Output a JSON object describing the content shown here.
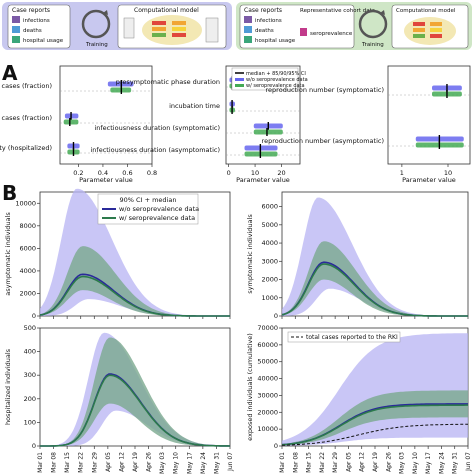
{
  "top_schematics": {
    "left": {
      "box1_title": "Case reports",
      "items": [
        "infections",
        "deaths",
        "hospital usage"
      ],
      "arrow_label": "Training",
      "model_title": "Computational model",
      "bg_color": "#c8c8ef"
    },
    "right": {
      "box1_title": "Case reports",
      "items": [
        "infections",
        "deaths",
        "hospital usage"
      ],
      "cohort_title": "Representative cohort data",
      "cohort_item": "seroprevalence",
      "arrow_label": "Training",
      "model_title": "Computational model",
      "bg_color": "#cfe6c6"
    }
  },
  "panel_labels": {
    "a": "A",
    "b": "B"
  },
  "colors": {
    "without_sero": "#6666ee",
    "with_sero": "#44aa55",
    "median_mark": "#000000",
    "band_purple": "#b7b3f3",
    "band_green": "#7aa98e",
    "line_blue": "#2a2a9a",
    "line_green": "#2c7a4c"
  },
  "panel_a": {
    "legend": [
      "median + 85/90/95% CI",
      "w/o seroprevalence data",
      "w/ seroprevalence data"
    ],
    "xlabel": "Parameter value",
    "sub1": {
      "ticks": [
        "0.2",
        "0.4",
        "0.6",
        "0.8"
      ],
      "params": [
        "asymptomatic cases (fraction)",
        "hospitalized cases (fraction)",
        "mortality (hospitalized)"
      ]
    },
    "sub2": {
      "ticks": [
        "0",
        "10",
        "20"
      ],
      "params": [
        "presymptomatic phase duration",
        "incubation time",
        "infectiousness duration (symptomatic)",
        "infectiousness duration (asymptomatic)"
      ]
    },
    "sub3": {
      "ticks": [
        "1",
        "10"
      ],
      "params": [
        "reproduction number (symptomatic)",
        "reproduction number (asymptomatic)"
      ]
    }
  },
  "chart_data": [
    {
      "type": "scatter",
      "subplot": "A-1",
      "xlabel": "Parameter value",
      "xlim": [
        0.05,
        0.8
      ],
      "rows": [
        {
          "label": "asymptomatic cases (fraction)",
          "wo": {
            "lo": 0.44,
            "hi": 0.65,
            "median": 0.55
          },
          "w": {
            "lo": 0.46,
            "hi": 0.63,
            "median": 0.55
          }
        },
        {
          "label": "hospitalized cases (fraction)",
          "wo": {
            "lo": 0.09,
            "hi": 0.2,
            "median": 0.14
          },
          "w": {
            "lo": 0.08,
            "hi": 0.2,
            "median": 0.13
          }
        },
        {
          "label": "mortality (hospitalized)",
          "wo": {
            "lo": 0.11,
            "hi": 0.21,
            "median": 0.16
          },
          "w": {
            "lo": 0.11,
            "hi": 0.21,
            "median": 0.16
          }
        }
      ]
    },
    {
      "type": "scatter",
      "subplot": "A-2",
      "xlabel": "Parameter value",
      "xlim": [
        -1,
        27
      ],
      "rows": [
        {
          "label": "presymptomatic phase duration",
          "wo": {
            "lo": 0.3,
            "hi": 2.6,
            "median": 1.4
          },
          "w": {
            "lo": 0.3,
            "hi": 2.6,
            "median": 1.4
          }
        },
        {
          "label": "incubation time",
          "wo": {
            "lo": 0.3,
            "hi": 2.4,
            "median": 1.3
          },
          "w": {
            "lo": 0.3,
            "hi": 2.4,
            "median": 1.3
          }
        },
        {
          "label": "infectiousness duration (symptomatic)",
          "wo": {
            "lo": 9.5,
            "hi": 20.5,
            "median": 15
          },
          "w": {
            "lo": 9.5,
            "hi": 20.5,
            "median": 14.5
          }
        },
        {
          "label": "infectiousness duration (asymptomatic)",
          "wo": {
            "lo": 6,
            "hi": 18.5,
            "median": 12
          },
          "w": {
            "lo": 6,
            "hi": 18.5,
            "median": 12
          }
        }
      ]
    },
    {
      "type": "scatter",
      "subplot": "A-3",
      "xlabel": "Parameter value",
      "xscale": "log",
      "xlim": [
        0.5,
        30
      ],
      "rows": [
        {
          "label": "reproduction number (symptomatic)",
          "wo": {
            "lo": 4.5,
            "hi": 20,
            "median": 9.5
          },
          "w": {
            "lo": 4.5,
            "hi": 20,
            "median": 9.5
          }
        },
        {
          "label": "reproduction number (asymptomatic)",
          "wo": {
            "lo": 2,
            "hi": 22,
            "median": 6.5
          },
          "w": {
            "lo": 2,
            "hi": 22,
            "median": 6.5
          }
        }
      ]
    },
    {
      "type": "area",
      "subplot": "B-1",
      "ylabel": "asymptomatic individuals",
      "ylim": [
        0,
        11000
      ],
      "yticks": [
        "0",
        "2000",
        "4000",
        "6000",
        "8000",
        "10000"
      ],
      "peak_day": 22,
      "curves": {
        "median_wo": 3700,
        "median_w": 3500,
        "band_wo_lo": 1500,
        "band_wo_hi": 11300,
        "band_w_lo": 2300,
        "band_w_hi": 6200
      },
      "series": [
        {
          "name": "w/o seroprevalence data"
        },
        {
          "name": "w/ seroprevalence data"
        }
      ],
      "legend_title": "90% CI + median"
    },
    {
      "type": "area",
      "subplot": "B-2",
      "ylabel": "symptomatic individuals",
      "ylim": [
        0,
        6800
      ],
      "yticks": [
        "0",
        "1000",
        "2000",
        "3000",
        "4000",
        "5000",
        "6000"
      ],
      "peak_day": 22,
      "curves": {
        "median_wo": 2950,
        "median_w": 2850,
        "band_wo_lo": 1500,
        "band_wo_hi": 6500,
        "band_w_lo": 2000,
        "band_w_hi": 4100
      }
    },
    {
      "type": "area",
      "subplot": "B-3",
      "ylabel": "hospitalized individuals",
      "ylim": [
        0,
        500
      ],
      "yticks": [
        "0",
        "100",
        "200",
        "300",
        "400",
        "500"
      ],
      "peak_day": 36,
      "curves": {
        "median_wo": 305,
        "median_w": 300,
        "band_wo_lo": 150,
        "band_wo_hi": 480,
        "band_w_lo": 180,
        "band_w_hi": 460
      }
    },
    {
      "type": "area",
      "subplot": "B-4",
      "ylabel": "exposed individuals (cumulative)",
      "ylim": [
        0,
        70000
      ],
      "yticks": [
        "0",
        "10000",
        "20000",
        "30000",
        "40000",
        "50000",
        "60000",
        "70000"
      ],
      "legend": [
        "total cases reported to the RKI"
      ],
      "curves": {
        "median_end": 25000,
        "band_wo_lo_end": 5000,
        "band_wo_hi_end": 67000,
        "band_w_lo_end": 17000,
        "band_w_hi_end": 33000,
        "reported_end": 13000
      }
    }
  ],
  "x_dates": [
    "Mar 01",
    "Mar 08",
    "Mar 15",
    "Mar 22",
    "Mar 29",
    "Apr 05",
    "Apr 12",
    "Apr 19",
    "Apr 26",
    "May 03",
    "May 10",
    "May 17",
    "May 24",
    "May 31",
    "Jun 07"
  ]
}
